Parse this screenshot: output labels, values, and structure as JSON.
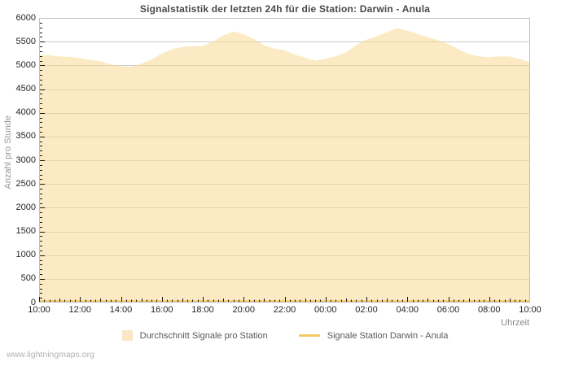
{
  "title": "Signalstatistik der letzten 24h für die Station: Darwin - Anula",
  "watermark": "www.lightningmaps.org",
  "colors": {
    "area_fill": "rgba(247,216,148,0.55)",
    "area_fill_flat": "#fbe7c5",
    "station_line": "#f1c75f",
    "gridline": "#cccccc",
    "plot_border": "#bfbfbf",
    "tick": "#1a1a1a",
    "title_text": "#4a4a4a",
    "axis_title_text": "#979797",
    "tick_label_text": "#262626",
    "legend_text": "#595959",
    "watermark_text": "#b2b2b2"
  },
  "y_axis": {
    "label": "Anzahl pro Stunde",
    "min": 0,
    "max": 6000,
    "major_step": 500,
    "minor_step": 100,
    "tick_labels": [
      "0",
      "500",
      "1000",
      "1500",
      "2000",
      "2500",
      "3000",
      "3500",
      "4000",
      "4500",
      "5000",
      "5500",
      "6000"
    ]
  },
  "x_axis": {
    "label": "Uhrzeit",
    "hours_span": 24,
    "major_step_hours": 2,
    "hour_tick_step": 1,
    "minor_tick_step_hours": 0.25,
    "tick_labels": [
      "10:00",
      "12:00",
      "14:00",
      "16:00",
      "18:00",
      "20:00",
      "22:00",
      "00:00",
      "02:00",
      "04:00",
      "06:00",
      "08:00",
      "10:00"
    ]
  },
  "legend": [
    {
      "label": "Durchschnitt Signale pro Station",
      "swatch": "area",
      "color": "#fae7c6"
    },
    {
      "label": "Signale Station Darwin - Anula",
      "swatch": "line",
      "color": "#f2ca63"
    }
  ],
  "chart_data": {
    "type": "area",
    "title": "Signalstatistik der letzten 24h für die Station: Darwin - Anula",
    "xlabel": "Uhrzeit",
    "ylabel": "Anzahl pro Stunde",
    "ylim": [
      0,
      6000
    ],
    "grid": "horizontal-major",
    "legend_position": "bottom-center",
    "x_hours": [
      0,
      0.5,
      1,
      1.5,
      2,
      2.5,
      3,
      3.5,
      4,
      4.5,
      5,
      5.5,
      6,
      6.5,
      7,
      7.5,
      8,
      8.5,
      9,
      9.5,
      10,
      10.5,
      11,
      11.5,
      12,
      12.5,
      13,
      13.5,
      14,
      14.5,
      15,
      15.5,
      16,
      16.5,
      17,
      17.5,
      18,
      18.5,
      19,
      19.5,
      20,
      20.5,
      21,
      21.5,
      22,
      22.5,
      23,
      23.5,
      24
    ],
    "x_start_label": "10:00",
    "series": [
      {
        "name": "Durchschnitt Signale pro Station",
        "render": "area",
        "color": "#fbe7c5",
        "values": [
          5210,
          5215,
          5185,
          5180,
          5150,
          5115,
          5085,
          5020,
          4985,
          4970,
          5040,
          5120,
          5255,
          5340,
          5390,
          5400,
          5410,
          5500,
          5630,
          5710,
          5655,
          5555,
          5420,
          5355,
          5320,
          5225,
          5160,
          5100,
          5140,
          5190,
          5270,
          5430,
          5540,
          5610,
          5700,
          5785,
          5730,
          5660,
          5590,
          5530,
          5450,
          5340,
          5235,
          5190,
          5170,
          5190,
          5185,
          5135,
          5060
        ]
      },
      {
        "name": "Signale Station Darwin - Anula",
        "render": "line",
        "color": "#f1c75f",
        "values": [
          0,
          0,
          0,
          0,
          0,
          0,
          0,
          0,
          0,
          0,
          0,
          0,
          0,
          0,
          0,
          0,
          0,
          0,
          0,
          0,
          0,
          0,
          0,
          0,
          0,
          0,
          0,
          0,
          0,
          0,
          0,
          0,
          0,
          0,
          0,
          0,
          0,
          0,
          0,
          0,
          0,
          0,
          0,
          0,
          0,
          0,
          0,
          0,
          0
        ]
      }
    ]
  }
}
